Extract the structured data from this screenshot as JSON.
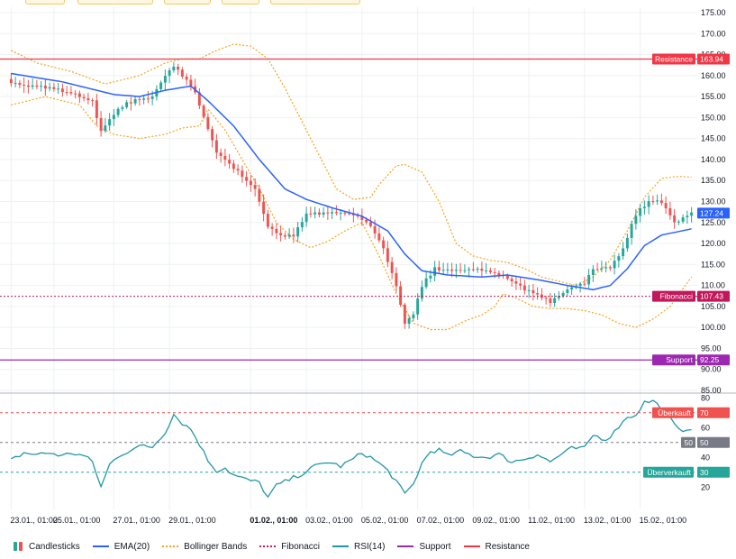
{
  "colors": {
    "up": "#26a69a",
    "down": "#ef5350",
    "ema": "#2962ff",
    "bollinger": "#f7a21b",
    "fibonacci": "#c2185b",
    "rsi": "#2196a8",
    "support": "#9c27b0",
    "resistance": "#f23645",
    "grid": "#eef0f3",
    "overbought": "#ef5350",
    "oversold": "#26a69a",
    "mid": "#787b86"
  },
  "legend": [
    {
      "label": "Candlesticks",
      "kind": "candle",
      "color_key": "up",
      "icon": "candlestick-icon"
    },
    {
      "label": "EMA(20)",
      "kind": "line",
      "color_key": "ema",
      "icon": "line-icon"
    },
    {
      "label": "Bollinger Bands",
      "kind": "dot",
      "color_key": "bollinger",
      "icon": "dotted-line-icon"
    },
    {
      "label": "Fibonacci",
      "kind": "dot",
      "color_key": "fibonacci",
      "icon": "dotted-line-icon"
    },
    {
      "label": "RSI(14)",
      "kind": "line",
      "color_key": "rsi",
      "icon": "line-icon"
    },
    {
      "label": "Support",
      "kind": "line",
      "color_key": "support",
      "icon": "line-icon"
    },
    {
      "label": "Resistance",
      "kind": "line",
      "color_key": "resistance",
      "icon": "line-icon"
    }
  ],
  "chart_data": [
    {
      "type": "candlestick",
      "price_axis": {
        "min": 85,
        "max": 175,
        "ticks": [
          "175.00",
          "170.00",
          "165.00",
          "160.00",
          "155.00",
          "150.00",
          "145.00",
          "140.00",
          "135.00",
          "130.00",
          "125.00",
          "120.00",
          "115.00",
          "110.00",
          "105.00",
          "100.00",
          "95.00",
          "90.00",
          "85.00"
        ]
      },
      "time_axis": {
        "count": 160,
        "labels": [
          {
            "i": 0,
            "text": "23.01., 01:00",
            "bold": false
          },
          {
            "i": 10,
            "text": "25.01., 01:00",
            "bold": false
          },
          {
            "i": 24,
            "text": "27.01., 01:00",
            "bold": false
          },
          {
            "i": 37,
            "text": "29.01., 01:00",
            "bold": false
          },
          {
            "i": 56,
            "text": "01.02., 01:00",
            "bold": true
          },
          {
            "i": 69,
            "text": "03.02., 01:00",
            "bold": false
          },
          {
            "i": 82,
            "text": "05.02., 01:00",
            "bold": false
          },
          {
            "i": 95,
            "text": "07.02., 01:00",
            "bold": false
          },
          {
            "i": 108,
            "text": "09.02., 01:00",
            "bold": false
          },
          {
            "i": 121,
            "text": "11.02., 01:00",
            "bold": false
          },
          {
            "i": 134,
            "text": "13.02., 01:00",
            "bold": false
          },
          {
            "i": 147,
            "text": "15.02., 01:00",
            "bold": false
          }
        ]
      },
      "anchors": [
        [
          0,
          158
        ],
        [
          5,
          157.5
        ],
        [
          10,
          157
        ],
        [
          15,
          155.5
        ],
        [
          19,
          154
        ],
        [
          21,
          146.5
        ],
        [
          24,
          151
        ],
        [
          27,
          153.5
        ],
        [
          33,
          155
        ],
        [
          36,
          160
        ],
        [
          38,
          162.5
        ],
        [
          40,
          160
        ],
        [
          43,
          156
        ],
        [
          45,
          150
        ],
        [
          48,
          142
        ],
        [
          52,
          138
        ],
        [
          57,
          133
        ],
        [
          60,
          124
        ],
        [
          63,
          122
        ],
        [
          66,
          122
        ],
        [
          69,
          127
        ],
        [
          75,
          127.5
        ],
        [
          80,
          127
        ],
        [
          84,
          124
        ],
        [
          87,
          119
        ],
        [
          90,
          110
        ],
        [
          92,
          101
        ],
        [
          94,
          103
        ],
        [
          96,
          110
        ],
        [
          99,
          114
        ],
        [
          103,
          113.5
        ],
        [
          108,
          114
        ],
        [
          112,
          113.5
        ],
        [
          116,
          111.5
        ],
        [
          120,
          109
        ],
        [
          124,
          107
        ],
        [
          126,
          106
        ],
        [
          130,
          109
        ],
        [
          134,
          110.5
        ],
        [
          136,
          114
        ],
        [
          140,
          114
        ],
        [
          143,
          119
        ],
        [
          146,
          127
        ],
        [
          149,
          130
        ],
        [
          152,
          130
        ],
        [
          155,
          125
        ],
        [
          159,
          127.2
        ]
      ],
      "ema20_anchors": [
        [
          0,
          160.5
        ],
        [
          6,
          159.5
        ],
        [
          12,
          158.5
        ],
        [
          18,
          157
        ],
        [
          24,
          155.5
        ],
        [
          30,
          155
        ],
        [
          36,
          156.5
        ],
        [
          42,
          157.5
        ],
        [
          46,
          154
        ],
        [
          52,
          148
        ],
        [
          58,
          140
        ],
        [
          64,
          133
        ],
        [
          69,
          130.5
        ],
        [
          75,
          128.5
        ],
        [
          82,
          126.5
        ],
        [
          88,
          123
        ],
        [
          92,
          117.5
        ],
        [
          96,
          113.5
        ],
        [
          102,
          112.5
        ],
        [
          110,
          112
        ],
        [
          116,
          112.5
        ],
        [
          124,
          111.2
        ],
        [
          130,
          110
        ],
        [
          136,
          109
        ],
        [
          140,
          110
        ],
        [
          144,
          114
        ],
        [
          148,
          119.5
        ],
        [
          152,
          122
        ],
        [
          159,
          123.5
        ]
      ],
      "bollinger_upper_anchors": [
        [
          0,
          166
        ],
        [
          6,
          163
        ],
        [
          14,
          161
        ],
        [
          22,
          158
        ],
        [
          30,
          160
        ],
        [
          36,
          163
        ],
        [
          40,
          164
        ],
        [
          44,
          164
        ],
        [
          48,
          166
        ],
        [
          52,
          167.5
        ],
        [
          56,
          167
        ],
        [
          60,
          164
        ],
        [
          64,
          157
        ],
        [
          68,
          149
        ],
        [
          72,
          141
        ],
        [
          76,
          133
        ],
        [
          80,
          130.5
        ],
        [
          84,
          131
        ],
        [
          86,
          134
        ],
        [
          90,
          138.5
        ],
        [
          92,
          138.8
        ],
        [
          96,
          137
        ],
        [
          100,
          130
        ],
        [
          104,
          120
        ],
        [
          108,
          117
        ],
        [
          112,
          116
        ],
        [
          116,
          115.5
        ],
        [
          120,
          114
        ],
        [
          124,
          112
        ],
        [
          128,
          111
        ],
        [
          132,
          110
        ],
        [
          136,
          112
        ],
        [
          140,
          116
        ],
        [
          144,
          123
        ],
        [
          148,
          131
        ],
        [
          152,
          135.5
        ],
        [
          156,
          136
        ],
        [
          159,
          135.8
        ]
      ],
      "bollinger_lower_anchors": [
        [
          0,
          153
        ],
        [
          8,
          155
        ],
        [
          16,
          153
        ],
        [
          20,
          148
        ],
        [
          24,
          146
        ],
        [
          30,
          145
        ],
        [
          36,
          146
        ],
        [
          40,
          147.5
        ],
        [
          44,
          148
        ],
        [
          46,
          152
        ],
        [
          50,
          147
        ],
        [
          54,
          140
        ],
        [
          58,
          133
        ],
        [
          62,
          125
        ],
        [
          66,
          121
        ],
        [
          70,
          119
        ],
        [
          74,
          120.5
        ],
        [
          78,
          123
        ],
        [
          82,
          125
        ],
        [
          86,
          117
        ],
        [
          90,
          108
        ],
        [
          94,
          101
        ],
        [
          98,
          99.5
        ],
        [
          102,
          99.5
        ],
        [
          106,
          101.5
        ],
        [
          110,
          103
        ],
        [
          113,
          105
        ],
        [
          115,
          108
        ],
        [
          118,
          107
        ],
        [
          122,
          105
        ],
        [
          126,
          104.5
        ],
        [
          130,
          104.5
        ],
        [
          134,
          104
        ],
        [
          138,
          103
        ],
        [
          142,
          101
        ],
        [
          146,
          100
        ],
        [
          150,
          102
        ],
        [
          154,
          105
        ],
        [
          159,
          112
        ]
      ],
      "resistance": {
        "value": 163.94,
        "label": "Resistance",
        "price": "163.94"
      },
      "support": {
        "value": 92.25,
        "label": "Support",
        "price": "92.25"
      },
      "fibonacci": {
        "value": 107.43,
        "label": "Fibonacci",
        "price": "107.43"
      },
      "last_price": {
        "value": 127.24,
        "label": "127.24"
      }
    },
    {
      "type": "line",
      "name": "RSI(14)",
      "y_axis": {
        "min": 5,
        "max": 82,
        "ticks": [
          "80",
          "70",
          "60",
          "50",
          "40",
          "30",
          "20"
        ]
      },
      "anchors": [
        [
          0,
          38
        ],
        [
          3,
          43
        ],
        [
          6,
          42
        ],
        [
          9,
          43
        ],
        [
          12,
          41
        ],
        [
          14,
          43
        ],
        [
          17,
          41
        ],
        [
          19,
          37
        ],
        [
          21,
          20
        ],
        [
          23,
          35
        ],
        [
          25,
          41
        ],
        [
          28,
          45
        ],
        [
          31,
          48
        ],
        [
          33,
          47
        ],
        [
          36,
          57
        ],
        [
          38,
          69
        ],
        [
          40,
          63
        ],
        [
          42,
          59
        ],
        [
          44,
          49
        ],
        [
          46,
          38
        ],
        [
          48,
          31
        ],
        [
          50,
          33
        ],
        [
          52,
          28
        ],
        [
          55,
          25
        ],
        [
          58,
          23
        ],
        [
          60,
          13
        ],
        [
          62,
          21
        ],
        [
          65,
          25
        ],
        [
          68,
          29
        ],
        [
          71,
          34
        ],
        [
          74,
          37
        ],
        [
          77,
          34
        ],
        [
          80,
          39
        ],
        [
          82,
          43
        ],
        [
          84,
          40
        ],
        [
          86,
          36
        ],
        [
          88,
          31
        ],
        [
          90,
          24
        ],
        [
          92,
          15
        ],
        [
          94,
          22
        ],
        [
          96,
          36
        ],
        [
          98,
          44
        ],
        [
          100,
          45
        ],
        [
          102,
          41
        ],
        [
          105,
          44
        ],
        [
          108,
          41
        ],
        [
          111,
          40
        ],
        [
          114,
          42
        ],
        [
          117,
          37
        ],
        [
          120,
          39
        ],
        [
          123,
          42
        ],
        [
          126,
          37
        ],
        [
          128,
          41
        ],
        [
          131,
          46
        ],
        [
          134,
          46
        ],
        [
          136,
          55
        ],
        [
          139,
          52
        ],
        [
          141,
          57
        ],
        [
          143,
          65
        ],
        [
          146,
          69
        ],
        [
          148,
          77
        ],
        [
          150,
          78
        ],
        [
          152,
          73
        ],
        [
          154,
          66
        ],
        [
          156,
          58
        ],
        [
          159,
          60
        ]
      ],
      "overbought": {
        "value": 70,
        "label": "Überkauft",
        "tag": "70"
      },
      "mid": {
        "value": 50,
        "label": "50",
        "tag": "50"
      },
      "oversold": {
        "value": 30,
        "label": "Überverkauft",
        "tag": "30"
      }
    }
  ]
}
